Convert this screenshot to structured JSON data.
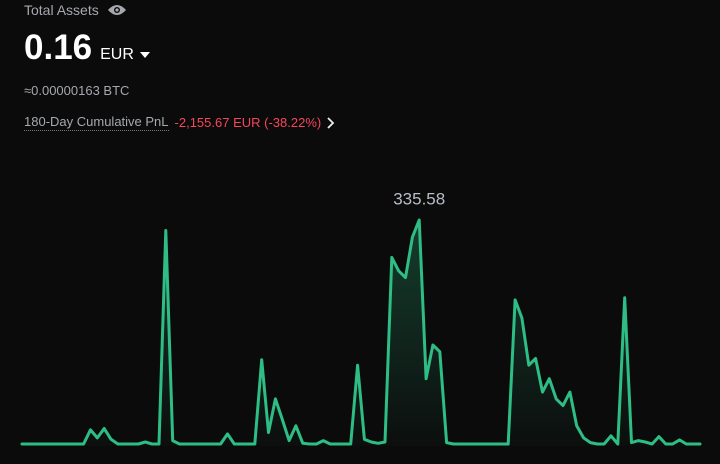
{
  "header": {
    "title": "Total Assets",
    "balance": "0.16",
    "currency": "EUR",
    "btc_equivalent": "≈0.00000163 BTC",
    "pnl_label": "180-Day Cumulative PnL",
    "pnl_value": "-2,155.67 EUR (-38.22%)"
  },
  "chart_data": {
    "type": "line",
    "series": [
      {
        "color": "#2ebd85",
        "values": [
          3,
          3,
          3,
          3,
          3,
          3,
          3,
          3,
          3,
          3,
          24,
          12,
          26,
          10,
          3,
          3,
          3,
          3,
          6,
          3,
          3,
          320,
          8,
          3,
          3,
          3,
          3,
          3,
          3,
          3,
          18,
          3,
          3,
          3,
          3,
          128,
          20,
          70,
          40,
          8,
          30,
          4,
          3,
          3,
          8,
          3,
          3,
          3,
          3,
          120,
          10,
          6,
          4,
          6,
          280,
          260,
          250,
          310,
          335.58,
          100,
          150,
          140,
          5,
          3,
          3,
          3,
          3,
          3,
          3,
          3,
          3,
          3,
          217,
          190,
          120,
          130,
          80,
          100,
          70,
          60,
          80,
          30,
          12,
          5,
          3,
          3,
          15,
          3,
          220,
          5,
          8,
          6,
          3,
          14,
          3,
          3,
          9,
          3,
          3,
          3
        ]
      }
    ]
  }
}
